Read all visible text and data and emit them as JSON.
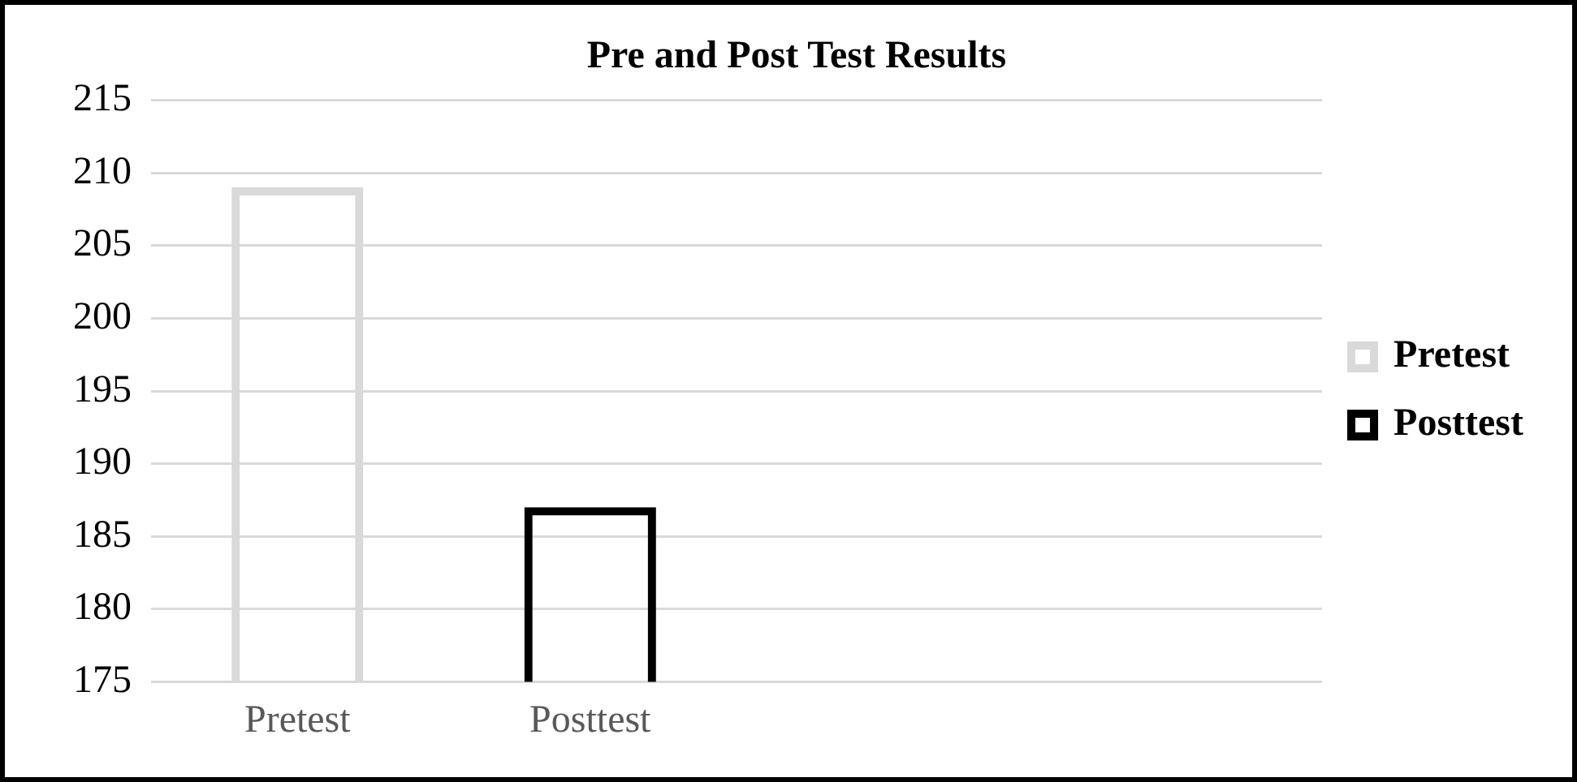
{
  "chart_data": {
    "type": "bar",
    "title": "Pre and Post Test Results",
    "categories": [
      "Pretest",
      "Posttest",
      null,
      null
    ],
    "series": [
      {
        "name": "Pretest",
        "color": "#d9d9d9",
        "values": [
          209,
          null,
          null,
          null
        ]
      },
      {
        "name": "Posttest",
        "color": "#000000",
        "values": [
          null,
          187,
          null,
          null
        ]
      }
    ],
    "ylim": [
      175,
      215
    ],
    "yticks": [
      175,
      180,
      185,
      190,
      195,
      200,
      205,
      210,
      215
    ],
    "grid": "y",
    "legend": "right"
  }
}
